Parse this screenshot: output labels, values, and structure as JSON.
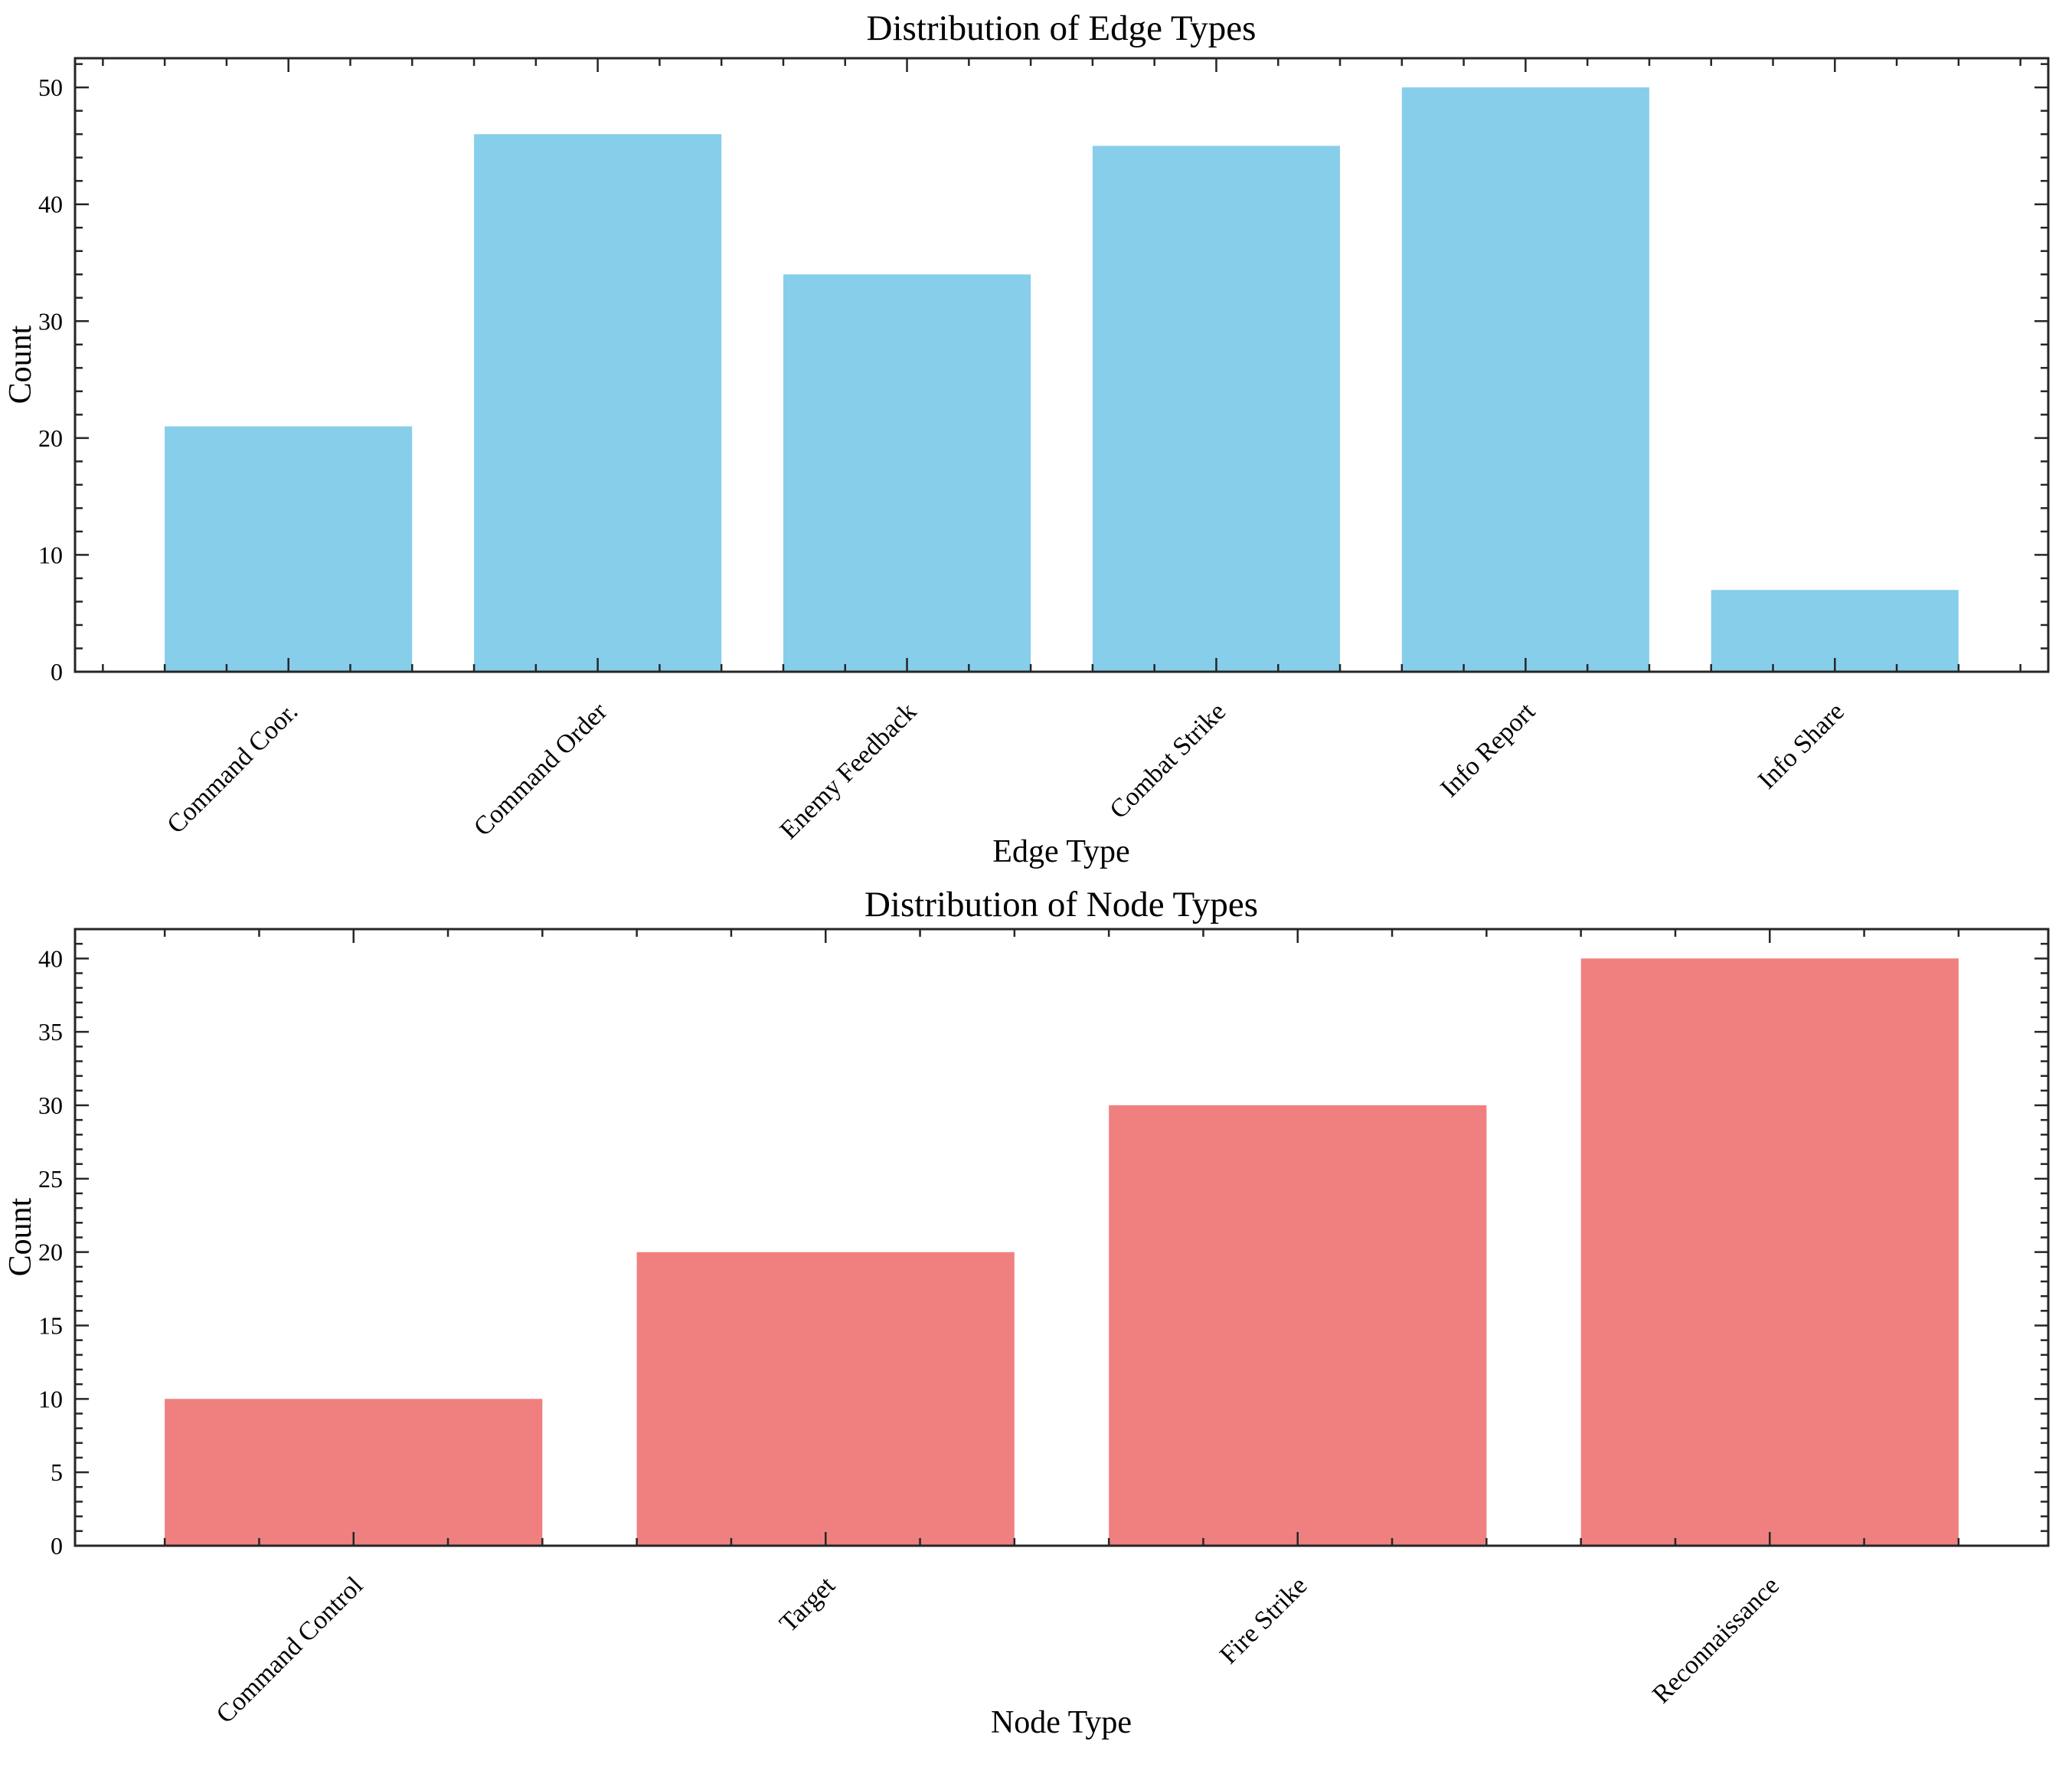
{
  "figure": {
    "background": "#ffffff",
    "text_color": "#000000",
    "spine_color": "#262626"
  },
  "chart_data": [
    {
      "type": "bar",
      "title": "Distribution of Edge Types",
      "xlabel": "Edge Type",
      "ylabel": "Count",
      "categories": [
        "Command Coor.",
        "Command Order",
        "Enemy Feedback",
        "Combat Strike",
        "Info Report",
        "Info Share"
      ],
      "values": [
        21,
        46,
        34,
        45,
        50,
        7
      ],
      "bar_color": "#87CEEB",
      "ylim": [
        0,
        52.5
      ],
      "ytick_step": 10,
      "yminor_step": 2,
      "xminor_divisions": 5,
      "grid": false,
      "legend": null,
      "tick_direction": "in",
      "ticks_all_sides": true,
      "xtick_label_rotation": 45
    },
    {
      "type": "bar",
      "title": "Distribution of Node Types",
      "xlabel": "Node Type",
      "ylabel": "Count",
      "categories": [
        "Command Control",
        "Target",
        "Fire Strike",
        "Reconnaissance"
      ],
      "values": [
        10,
        20,
        30,
        40
      ],
      "bar_color": "#F08080",
      "ylim": [
        0,
        42
      ],
      "ytick_step": 5,
      "yminor_step": 1,
      "xminor_divisions": 5,
      "grid": false,
      "legend": null,
      "tick_direction": "in",
      "ticks_all_sides": true,
      "xtick_label_rotation": 45
    }
  ]
}
